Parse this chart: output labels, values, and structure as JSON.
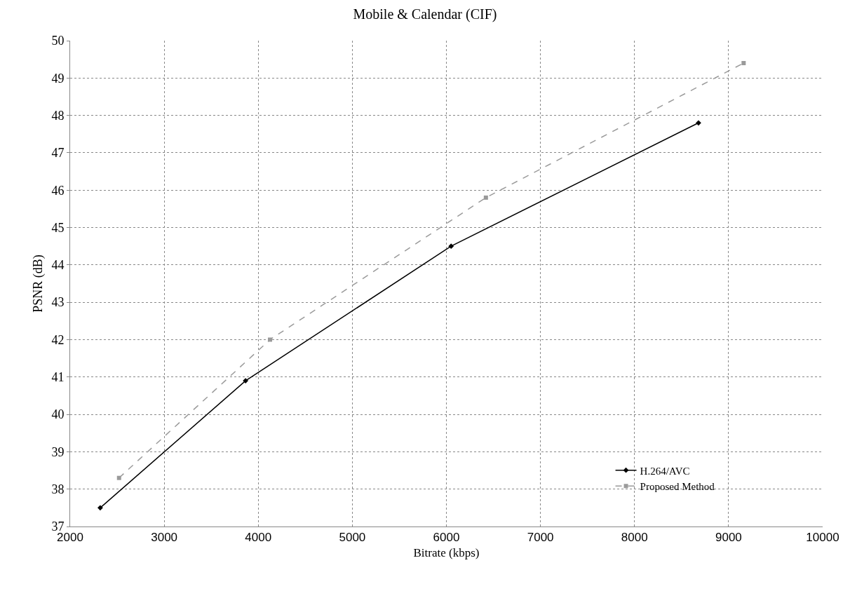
{
  "chart_data": {
    "type": "line",
    "title": "Mobile & Calendar (CIF)",
    "xlabel": "Bitrate (kbps)",
    "ylabel": "PSNR (dB)",
    "xlim": [
      2000,
      10000
    ],
    "xticks": [
      2000,
      3000,
      4000,
      5000,
      6000,
      7000,
      8000,
      9000,
      10000
    ],
    "ylim": [
      37,
      50
    ],
    "yticks": [
      37,
      38,
      39,
      40,
      41,
      42,
      43,
      44,
      45,
      46,
      47,
      48,
      49,
      50
    ],
    "grid": true,
    "legend": "bottom right",
    "series": [
      {
        "name": "H.264/AVC",
        "color": "#000000",
        "marker": "diamond",
        "line_style": "solid",
        "x": [
          2320,
          3865,
          6050,
          8680
        ],
        "values": [
          37.5,
          40.9,
          44.5,
          47.8
        ]
      },
      {
        "name": "Proposed Method",
        "color": "#9a9a9a",
        "marker": "square",
        "line_style": "dashed",
        "x": [
          2520,
          4125,
          6420,
          9160
        ],
        "values": [
          38.3,
          42.0,
          45.8,
          49.4
        ]
      }
    ]
  }
}
